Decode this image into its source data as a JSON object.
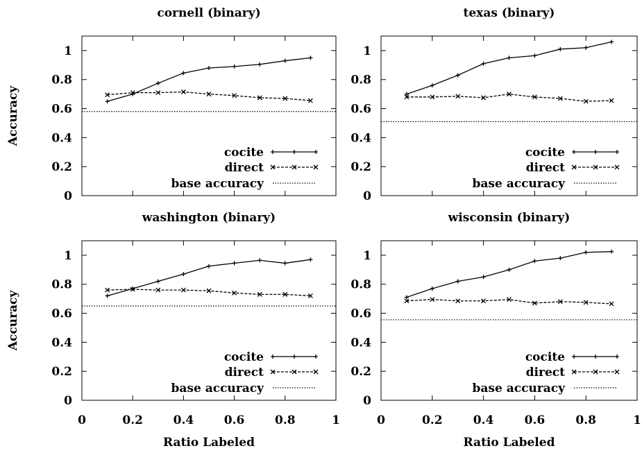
{
  "figure": {
    "xlabel": "Ratio Labeled",
    "ylabel": "Accuracy",
    "xticks": [
      "0",
      "0.2",
      "0.4",
      "0.6",
      "0.8",
      "1"
    ],
    "yticks": [
      "0",
      "0.2",
      "0.4",
      "0.6",
      "0.8",
      "1"
    ]
  },
  "chart_data": [
    {
      "type": "line",
      "title": "cornell (binary)",
      "xlabel": "",
      "ylabel": "Accuracy",
      "xlim": [
        0,
        1
      ],
      "ylim": [
        0,
        1.1
      ],
      "x": [
        0.1,
        0.2,
        0.3,
        0.4,
        0.5,
        0.6,
        0.7,
        0.8,
        0.9
      ],
      "series": [
        {
          "name": "cocite",
          "values": [
            0.65,
            0.7,
            0.775,
            0.845,
            0.88,
            0.89,
            0.905,
            0.93,
            0.95
          ]
        },
        {
          "name": "direct",
          "values": [
            0.695,
            0.71,
            0.71,
            0.715,
            0.7,
            0.69,
            0.675,
            0.67,
            0.655
          ]
        },
        {
          "name": "base accuracy",
          "constant": 0.58
        }
      ],
      "legend": "bottom-right",
      "grid": false
    },
    {
      "type": "line",
      "title": "texas (binary)",
      "xlabel": "",
      "ylabel": "",
      "xlim": [
        0,
        1
      ],
      "ylim": [
        0,
        1.1
      ],
      "x": [
        0.1,
        0.2,
        0.3,
        0.4,
        0.5,
        0.6,
        0.7,
        0.8,
        0.9
      ],
      "series": [
        {
          "name": "cocite",
          "values": [
            0.7,
            0.76,
            0.83,
            0.91,
            0.95,
            0.965,
            1.01,
            1.02,
            1.06
          ]
        },
        {
          "name": "direct",
          "values": [
            0.68,
            0.68,
            0.685,
            0.675,
            0.7,
            0.68,
            0.67,
            0.65,
            0.655
          ]
        },
        {
          "name": "base accuracy",
          "constant": 0.51
        }
      ],
      "legend": "bottom-right",
      "grid": false
    },
    {
      "type": "line",
      "title": "washington (binary)",
      "xlabel": "Ratio Labeled",
      "ylabel": "Accuracy",
      "xlim": [
        0,
        1
      ],
      "ylim": [
        0,
        1.1
      ],
      "x": [
        0.1,
        0.2,
        0.3,
        0.4,
        0.5,
        0.6,
        0.7,
        0.8,
        0.9
      ],
      "series": [
        {
          "name": "cocite",
          "values": [
            0.72,
            0.77,
            0.82,
            0.87,
            0.925,
            0.945,
            0.965,
            0.945,
            0.97
          ]
        },
        {
          "name": "direct",
          "values": [
            0.76,
            0.765,
            0.76,
            0.76,
            0.755,
            0.74,
            0.73,
            0.73,
            0.72
          ]
        },
        {
          "name": "base accuracy",
          "constant": 0.65
        }
      ],
      "legend": "bottom-right",
      "grid": false
    },
    {
      "type": "line",
      "title": "wisconsin (binary)",
      "xlabel": "Ratio Labeled",
      "ylabel": "",
      "xlim": [
        0,
        1
      ],
      "ylim": [
        0,
        1.1
      ],
      "x": [
        0.1,
        0.2,
        0.3,
        0.4,
        0.5,
        0.6,
        0.7,
        0.8,
        0.9
      ],
      "series": [
        {
          "name": "cocite",
          "values": [
            0.71,
            0.77,
            0.82,
            0.85,
            0.9,
            0.96,
            0.98,
            1.02,
            1.025
          ]
        },
        {
          "name": "direct",
          "values": [
            0.685,
            0.695,
            0.685,
            0.685,
            0.695,
            0.67,
            0.68,
            0.675,
            0.665
          ]
        },
        {
          "name": "base accuracy",
          "constant": 0.555
        }
      ],
      "legend": "bottom-right",
      "grid": false
    }
  ]
}
